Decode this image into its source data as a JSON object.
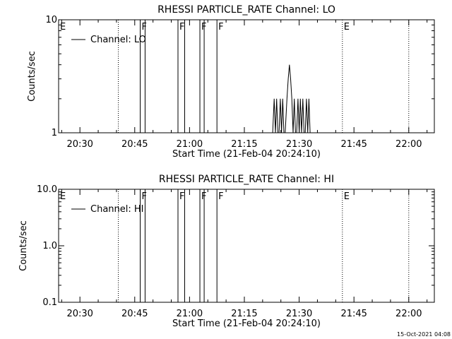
{
  "chart_data": [
    {
      "type": "line",
      "title": "RHESSI PARTICLE_RATE Channel: LO",
      "xlabel": "Start Time (21-Feb-04 20:24:10)",
      "ylabel": "Counts/sec",
      "yscale": "log",
      "ylim": [
        1,
        10
      ],
      "ytick_values": [
        1,
        10
      ],
      "ytick_labels": [
        "1",
        "10"
      ],
      "xlim": [
        "20:24:10",
        "22:07:00"
      ],
      "xtick_labels": [
        "20:30",
        "20:45",
        "21:00",
        "21:15",
        "21:30",
        "21:45",
        "22:00"
      ],
      "xtick_values": [
        "20:30",
        "20:45",
        "21:00",
        "21:15",
        "21:30",
        "21:45",
        "22:00"
      ],
      "legend": {
        "placement": "top-left",
        "entries": [
          "Channel: LO"
        ]
      },
      "series": [
        {
          "name": "Channel: LO",
          "x": [
            "21:22:45",
            "21:23:10",
            "21:23:30",
            "21:23:50",
            "21:24:10",
            "21:24:30",
            "21:24:50",
            "21:25:10",
            "21:25:30",
            "21:25:50",
            "21:26:10",
            "21:26:40",
            "21:27:00",
            "21:27:20",
            "21:27:40",
            "21:28:00",
            "21:28:20",
            "21:28:40",
            "21:29:00",
            "21:29:20",
            "21:29:40",
            "21:30:00",
            "21:30:20",
            "21:30:40",
            "21:31:00",
            "21:31:20",
            "21:31:40",
            "21:32:00",
            "21:32:20",
            "21:32:40",
            "21:33:00",
            "21:33:20"
          ],
          "y": [
            1,
            2,
            1,
            2,
            1,
            1,
            2,
            1,
            2,
            1,
            1,
            2,
            3,
            4,
            3,
            2,
            1,
            2,
            1,
            1,
            2,
            1,
            2,
            1,
            2,
            1,
            1,
            2,
            1,
            2,
            1,
            1
          ]
        }
      ],
      "events": [
        {
          "label": "E",
          "time": "20:24:10",
          "style": "dotted"
        },
        {
          "label": "",
          "time": "20:40:30",
          "style": "dotted"
        },
        {
          "label": "F",
          "time": "20:46:30",
          "style": "solid"
        },
        {
          "label": "",
          "time": "20:47:50",
          "style": "solid"
        },
        {
          "label": "F",
          "time": "20:56:50",
          "style": "solid"
        },
        {
          "label": "",
          "time": "20:58:40",
          "style": "solid"
        },
        {
          "label": "F",
          "time": "21:02:50",
          "style": "solid"
        },
        {
          "label": "",
          "time": "21:04:00",
          "style": "solid"
        },
        {
          "label": "F",
          "time": "21:07:30",
          "style": "solid"
        },
        {
          "label": "E",
          "time": "21:41:50",
          "style": "dotted"
        },
        {
          "label": "",
          "time": "22:00:00",
          "style": "dotted"
        }
      ]
    },
    {
      "type": "line",
      "title": "RHESSI PARTICLE_RATE Channel: HI",
      "xlabel": "Start Time (21-Feb-04 20:24:10)",
      "ylabel": "Counts/sec",
      "yscale": "log",
      "ylim": [
        0.1,
        10
      ],
      "ytick_values": [
        0.1,
        1,
        10
      ],
      "ytick_labels": [
        "0.1",
        "1.0",
        "10.0"
      ],
      "xlim": [
        "20:24:10",
        "22:07:00"
      ],
      "xtick_labels": [
        "20:30",
        "20:45",
        "21:00",
        "21:15",
        "21:30",
        "21:45",
        "22:00"
      ],
      "xtick_values": [
        "20:30",
        "20:45",
        "21:00",
        "21:15",
        "21:30",
        "21:45",
        "22:00"
      ],
      "legend": {
        "placement": "top-left",
        "entries": [
          "Channel: HI"
        ]
      },
      "series": [
        {
          "name": "Channel: HI",
          "x": [],
          "y": []
        }
      ],
      "events": [
        {
          "label": "E",
          "time": "20:24:10",
          "style": "dotted"
        },
        {
          "label": "",
          "time": "20:40:30",
          "style": "dotted"
        },
        {
          "label": "F",
          "time": "20:46:30",
          "style": "solid"
        },
        {
          "label": "",
          "time": "20:47:50",
          "style": "solid"
        },
        {
          "label": "F",
          "time": "20:56:50",
          "style": "solid"
        },
        {
          "label": "",
          "time": "20:58:40",
          "style": "solid"
        },
        {
          "label": "F",
          "time": "21:02:50",
          "style": "solid"
        },
        {
          "label": "",
          "time": "21:04:00",
          "style": "solid"
        },
        {
          "label": "F",
          "time": "21:07:30",
          "style": "solid"
        },
        {
          "label": "E",
          "time": "21:41:50",
          "style": "dotted"
        },
        {
          "label": "",
          "time": "22:00:00",
          "style": "dotted"
        }
      ]
    }
  ],
  "footer": {
    "timestamp": "15-Oct-2021 04:08"
  }
}
